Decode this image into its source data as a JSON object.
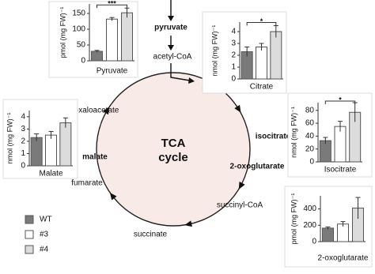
{
  "center_label": [
    "TCA",
    "cycle"
  ],
  "metabolites": [
    {
      "label": "pyruvate",
      "bold": true
    },
    {
      "label": "acetyl-CoA",
      "bold": false
    },
    {
      "label": "citrate",
      "bold": true
    },
    {
      "label": "isocitrate",
      "bold": true
    },
    {
      "label": "2-oxoglutarate",
      "bold": true
    },
    {
      "label": "succinyl-CoA",
      "bold": false
    },
    {
      "label": "succinate",
      "bold": false
    },
    {
      "label": "fumarate",
      "bold": false
    },
    {
      "label": "malate",
      "bold": true
    },
    {
      "label": "oxaloacetate",
      "bold": false
    }
  ],
  "legend": [
    {
      "name": "WT",
      "color": "#7a7a7a"
    },
    {
      "name": "#3",
      "color": "#ffffff"
    },
    {
      "name": "#4",
      "color": "#dcdcdc"
    }
  ],
  "charts": [
    {
      "title": "Pyruvate",
      "ylabel": "pmol (mg FW)⁻¹",
      "ylim": [
        0,
        180
      ],
      "yticks": [
        0,
        50,
        100,
        150
      ],
      "values": [
        30,
        132,
        152
      ],
      "errors": [
        3,
        5,
        15
      ],
      "significance": "***"
    },
    {
      "title": "Citrate",
      "ylabel": "nmol (mg FW)⁻¹",
      "ylim": [
        0,
        4.8
      ],
      "yticks": [
        0,
        1,
        2,
        3,
        4
      ],
      "values": [
        2.3,
        2.7,
        4.0
      ],
      "errors": [
        0.4,
        0.3,
        0.5
      ],
      "significance": "*"
    },
    {
      "title": "Malate",
      "ylabel": "nmol (mg FW)⁻¹",
      "ylim": [
        0,
        4.5
      ],
      "yticks": [
        0,
        1,
        2,
        3,
        4
      ],
      "values": [
        2.3,
        2.5,
        3.5
      ],
      "errors": [
        0.3,
        0.3,
        0.4
      ]
    },
    {
      "title": "Isocitrate",
      "ylabel": "nmol (mg FW)⁻¹",
      "ylim": [
        0,
        92
      ],
      "yticks": [
        0,
        20,
        40,
        60,
        80
      ],
      "values": [
        33,
        55,
        77
      ],
      "errors": [
        5,
        8,
        15
      ],
      "significance": "*"
    },
    {
      "title": "2-oxoglutarate",
      "ylabel": "pmol (mg FW)⁻¹",
      "ylim": [
        0,
        560
      ],
      "yticks": [
        0,
        200,
        400
      ],
      "values": [
        165,
        215,
        410
      ],
      "errors": [
        15,
        30,
        130
      ]
    }
  ]
}
